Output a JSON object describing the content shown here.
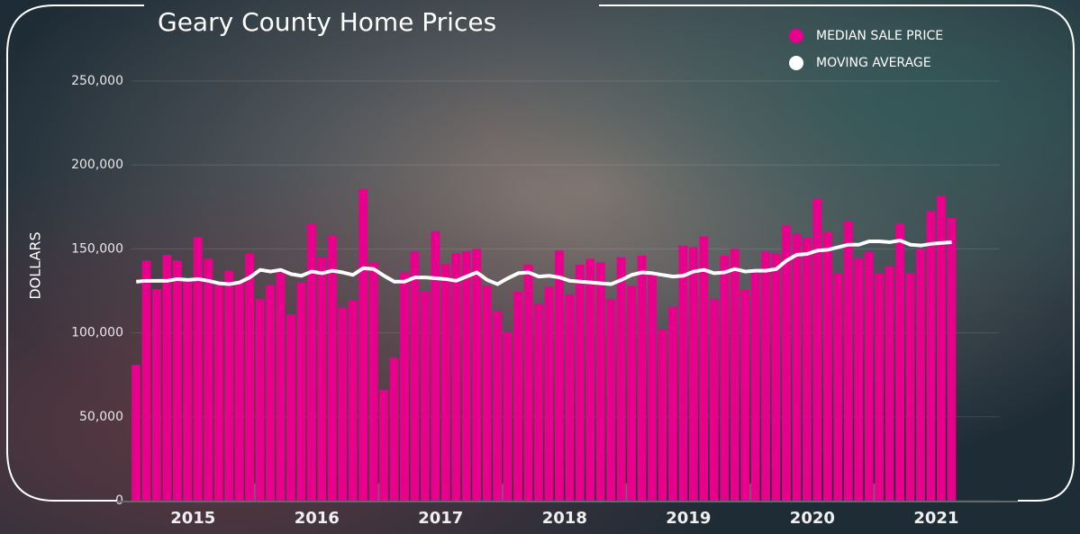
{
  "chart_data": {
    "type": "bar",
    "title": "Geary County Home Prices",
    "y_label": "DOLLARS",
    "categories": [
      null,
      null,
      null,
      null,
      null,
      null,
      null,
      null,
      null,
      null,
      null,
      null,
      null,
      null,
      null,
      null,
      null,
      null,
      null,
      null,
      null,
      null,
      null,
      null,
      null,
      null,
      null,
      null,
      null,
      null,
      null,
      null,
      null,
      null,
      null,
      null,
      null,
      null,
      null,
      null,
      null,
      null,
      null,
      null,
      null,
      null,
      null,
      null,
      null,
      null,
      null,
      null,
      null,
      null,
      null,
      null,
      null,
      null,
      null,
      null,
      null,
      null,
      null,
      null,
      null,
      null,
      null,
      null,
      null,
      null,
      null,
      null,
      null,
      null,
      null,
      null,
      null,
      null,
      null,
      null
    ],
    "year_labels": [
      "2015",
      "2016",
      "2017",
      "2018",
      "2019",
      "2020",
      "2021"
    ],
    "series": [
      {
        "name": "MEDIAN SALE PRICE",
        "color": "#e8008c",
        "kind": "bar",
        "values": [
          81000,
          143000,
          126000,
          146500,
          143000,
          132000,
          157000,
          144000,
          128500,
          137000,
          130000,
          147000,
          120000,
          128500,
          136000,
          111000,
          130000,
          165000,
          145000,
          158000,
          115000,
          119500,
          185500,
          142000,
          66000,
          85000,
          136000,
          148500,
          125000,
          160500,
          141000,
          147500,
          148500,
          150000,
          128000,
          113000,
          100500,
          124500,
          140500,
          117500,
          127500,
          149000,
          123000,
          140500,
          144000,
          142000,
          120000,
          145000,
          128000,
          146000,
          135500,
          102000,
          115500,
          152000,
          151000,
          157500,
          120000,
          146000,
          150000,
          125500,
          137500,
          148500,
          147500,
          164000,
          159000,
          156500,
          180000,
          160000,
          135500,
          166500,
          144500,
          148500,
          135500,
          139500,
          165000,
          135500,
          150000,
          172500,
          181500,
          168500
        ]
      },
      {
        "name": "MOVING AVERAGE",
        "color": "#ffffff",
        "kind": "line",
        "values": [
          130500,
          131000,
          131000,
          131000,
          132000,
          131500,
          132000,
          131000,
          129500,
          129000,
          130000,
          133000,
          137500,
          136500,
          137500,
          135000,
          134000,
          136500,
          135500,
          137000,
          136000,
          134500,
          138500,
          138000,
          134000,
          130500,
          130500,
          133000,
          133000,
          132500,
          132000,
          131000,
          133500,
          136000,
          131500,
          129000,
          132500,
          135500,
          136000,
          133500,
          134000,
          133000,
          131000,
          130500,
          130000,
          129500,
          129000,
          131500,
          134500,
          136000,
          135500,
          134500,
          133500,
          134000,
          136500,
          137500,
          135500,
          136000,
          138000,
          136500,
          137000,
          137000,
          138000,
          143000,
          146500,
          147000,
          149000,
          149500,
          151000,
          152500,
          152500,
          154500,
          154500,
          154000,
          155000,
          152500,
          152000,
          153000,
          153500,
          154000
        ]
      }
    ],
    "ylim": [
      0,
      250000
    ],
    "yticks": [
      {
        "value": 0,
        "label": "0"
      },
      {
        "value": 50000,
        "label": "50,000"
      },
      {
        "value": 100000,
        "label": "100,000"
      },
      {
        "value": 150000,
        "label": "150,000"
      },
      {
        "value": 200000,
        "label": "200,000"
      },
      {
        "value": 250000,
        "label": "250,000"
      }
    ],
    "grid": true
  }
}
